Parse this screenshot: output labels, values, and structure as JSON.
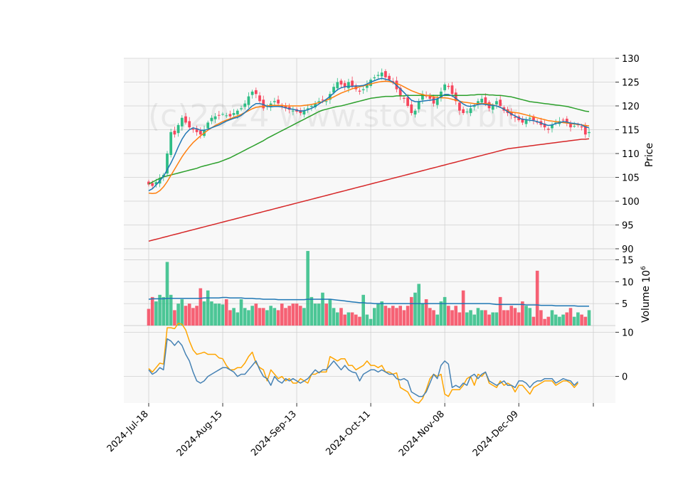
{
  "watermark": "(c)2024 www.stockorbit",
  "chart_data": {
    "type": "candlestick",
    "colors": {
      "up": "#2ebd85",
      "down": "#f6465d",
      "ma_fast": "#1f77b4",
      "ma_mid": "#ff7f0e",
      "ma_slow": "#2ca02c",
      "ma_long": "#d62728",
      "vol_ma": "#1f77b4",
      "osc_signal": "#ffa500",
      "osc_line": "#4682b4",
      "grid": "#d0d0d0",
      "panel_bg": "#f8f8f8"
    },
    "x_tick_labels": [
      "2024-Jul-18",
      "2024-Aug-15",
      "2024-Sep-13",
      "2024-Oct-11",
      "2024-Nov-08",
      "2024-Dec-09"
    ],
    "x_tick_index": [
      0,
      20,
      40,
      60,
      80,
      100
    ],
    "price_panel": {
      "ylabel": "Price",
      "ylim": [
        90,
        130
      ],
      "yticks": [
        90,
        95,
        100,
        105,
        110,
        115,
        120,
        125,
        130
      ],
      "close": [
        103.5,
        103.2,
        104.0,
        104.8,
        105.5,
        110.0,
        114.5,
        114.0,
        116.0,
        117.5,
        116.5,
        115.5,
        115.0,
        114.5,
        114.0,
        115.0,
        116.5,
        117.5,
        117.8,
        118.0,
        118.3,
        118.0,
        117.8,
        118.5,
        119.0,
        119.5,
        120.5,
        122.0,
        123.0,
        122.5,
        121.0,
        119.5,
        120.0,
        120.5,
        121.0,
        120.5,
        119.8,
        119.5,
        119.2,
        119.0,
        118.8,
        118.5,
        119.0,
        119.5,
        120.0,
        120.5,
        121.0,
        121.2,
        121.0,
        122.5,
        124.0,
        125.0,
        124.5,
        124.0,
        125.0,
        124.0,
        123.5,
        123.0,
        123.5,
        124.5,
        125.5,
        126.0,
        126.5,
        127.0,
        126.0,
        125.5,
        125.0,
        123.5,
        122.0,
        121.5,
        120.0,
        118.5,
        119.0,
        121.0,
        122.5,
        122.0,
        121.5,
        120.5,
        121.5,
        123.0,
        124.5,
        124.0,
        122.5,
        121.0,
        119.0,
        118.5,
        118.8,
        119.5,
        120.0,
        121.0,
        121.5,
        120.5,
        119.5,
        120.0,
        121.0,
        120.0,
        119.0,
        118.5,
        118.0,
        117.5,
        117.0,
        116.5,
        117.0,
        117.5,
        117.0,
        116.5,
        116.0,
        115.5,
        115.0,
        116.0,
        116.5,
        116.8,
        117.0,
        116.5,
        115.5,
        115.8,
        116.0,
        115.5,
        114.0,
        114.5
      ],
      "ma_fast": [
        102.2,
        102.6,
        103.4,
        104.3,
        105.2,
        106.6,
        108.0,
        109.6,
        111.4,
        113.0,
        114.2,
        115.0,
        115.4,
        115.2,
        114.9,
        114.9,
        115.1,
        115.4,
        115.7,
        116.0,
        116.4,
        116.8,
        117.1,
        117.4,
        117.6,
        118.0,
        118.6,
        119.3,
        120.0,
        120.5,
        120.5,
        120.3,
        119.9,
        119.8,
        119.9,
        119.9,
        119.8,
        119.6,
        119.4,
        119.3,
        119.1,
        118.9,
        119.0,
        119.2,
        119.5,
        119.9,
        120.4,
        120.9,
        121.4,
        122.0,
        122.7,
        123.4,
        123.8,
        124.0,
        124.1,
        124.1,
        124.2,
        124.2,
        124.3,
        124.6,
        125.0,
        125.3,
        125.6,
        125.8,
        125.6,
        125.4,
        125.0,
        124.3,
        123.6,
        122.8,
        122.0,
        121.2,
        120.9,
        120.9,
        121.0,
        121.1,
        121.2,
        121.3,
        121.5,
        121.9,
        122.4,
        122.4,
        122.1,
        121.6,
        121.0,
        120.4,
        120.0,
        119.9,
        120.1,
        120.3,
        120.4,
        120.3,
        120.2,
        120.1,
        120.0,
        119.7,
        119.3,
        118.8,
        118.3,
        117.9,
        117.5,
        117.2,
        117.1,
        117.0,
        116.9,
        116.7,
        116.4,
        116.1,
        115.9,
        116.0,
        116.3,
        116.5,
        116.7,
        116.6,
        116.4,
        116.3,
        116.2,
        116.0,
        115.6,
        115.4
      ],
      "ma_mid": [
        101.7,
        101.6,
        101.7,
        102.2,
        103.0,
        104.1,
        105.4,
        106.7,
        108.0,
        109.3,
        110.4,
        111.4,
        112.3,
        113.0,
        113.7,
        114.3,
        114.9,
        115.4,
        115.9,
        116.3,
        116.7,
        117.0,
        117.3,
        117.6,
        117.9,
        118.2,
        118.6,
        119.0,
        119.4,
        119.7,
        119.8,
        119.9,
        120.0,
        120.1,
        120.1,
        120.1,
        120.1,
        120.0,
        120.0,
        120.0,
        120.0,
        120.0,
        120.1,
        120.2,
        120.3,
        120.5,
        120.7,
        120.9,
        121.2,
        121.5,
        121.9,
        122.3,
        122.7,
        123.0,
        123.3,
        123.6,
        123.8,
        124.0,
        124.2,
        124.4,
        124.6,
        124.8,
        125.0,
        125.1,
        125.2,
        125.1,
        124.9,
        124.7,
        124.4,
        124.0,
        123.6,
        123.2,
        122.9,
        122.6,
        122.4,
        122.2,
        122.1,
        121.9,
        121.8,
        121.7,
        121.7,
        121.6,
        121.4,
        121.2,
        121.0,
        120.8,
        120.7,
        120.6,
        120.5,
        120.5,
        120.5,
        120.5,
        120.4,
        120.2,
        120.0,
        119.7,
        119.3,
        118.9,
        118.7,
        118.6,
        118.5,
        118.3,
        118.1,
        117.9,
        117.7,
        117.5,
        117.3,
        117.1,
        116.9,
        116.8,
        116.7,
        116.6,
        116.5,
        116.4,
        116.3,
        116.2,
        116.1,
        116.0,
        115.9,
        115.8
      ],
      "ma_slow": [
        103.6,
        104.0,
        104.4,
        104.8,
        105.1,
        105.3,
        105.5,
        105.7,
        105.9,
        106.1,
        106.3,
        106.5,
        106.7,
        106.9,
        107.2,
        107.4,
        107.6,
        107.8,
        108.0,
        108.2,
        108.5,
        108.8,
        109.1,
        109.5,
        109.9,
        110.3,
        110.7,
        111.1,
        111.5,
        111.9,
        112.3,
        112.7,
        113.2,
        113.6,
        114.0,
        114.4,
        114.8,
        115.2,
        115.6,
        116.0,
        116.4,
        116.8,
        117.2,
        117.6,
        118.0,
        118.4,
        118.8,
        119.1,
        119.3,
        119.5,
        119.7,
        119.9,
        120.0,
        120.2,
        120.4,
        120.6,
        120.8,
        121.0,
        121.2,
        121.4,
        121.6,
        121.7,
        121.8,
        121.9,
        122.0,
        122.0,
        122.0,
        122.1,
        122.1,
        122.1,
        122.2,
        122.2,
        122.2,
        122.2,
        122.2,
        122.2,
        122.2,
        122.2,
        122.2,
        122.2,
        122.2,
        122.2,
        122.2,
        122.2,
        122.2,
        122.2,
        122.2,
        122.3,
        122.3,
        122.4,
        122.4,
        122.4,
        122.3,
        122.3,
        122.2,
        122.2,
        122.1,
        122.0,
        121.9,
        121.7,
        121.5,
        121.3,
        121.1,
        120.9,
        120.8,
        120.7,
        120.6,
        120.5,
        120.4,
        120.3,
        120.2,
        120.1,
        120.0,
        119.9,
        119.7,
        119.5,
        119.3,
        119.1,
        118.9,
        118.8
      ],
      "ma_long": [
        91.6,
        91.8,
        92.0,
        92.2,
        92.4,
        92.6,
        92.8,
        93.0,
        93.2,
        93.4,
        93.6,
        93.8,
        94.0,
        94.2,
        94.4,
        94.6,
        94.8,
        95.0,
        95.2,
        95.4,
        95.6,
        95.8,
        96.0,
        96.2,
        96.4,
        96.6,
        96.8,
        97.0,
        97.2,
        97.4,
        97.6,
        97.8,
        98.0,
        98.2,
        98.4,
        98.6,
        98.8,
        99.0,
        99.2,
        99.4,
        99.6,
        99.8,
        100.0,
        100.2,
        100.4,
        100.6,
        100.8,
        101.0,
        101.2,
        101.4,
        101.6,
        101.8,
        102.0,
        102.2,
        102.4,
        102.6,
        102.8,
        103.0,
        103.2,
        103.4,
        103.6,
        103.8,
        104.0,
        104.2,
        104.4,
        104.6,
        104.8,
        105.0,
        105.2,
        105.4,
        105.6,
        105.8,
        106.0,
        106.2,
        106.4,
        106.6,
        106.8,
        107.0,
        107.2,
        107.4,
        107.6,
        107.8,
        108.0,
        108.2,
        108.4,
        108.6,
        108.8,
        109.0,
        109.2,
        109.4,
        109.6,
        109.8,
        110.0,
        110.2,
        110.4,
        110.6,
        110.8,
        111.0,
        111.1,
        111.2,
        111.3,
        111.4,
        111.5,
        111.6,
        111.7,
        111.8,
        111.9,
        112.0,
        112.1,
        112.2,
        112.3,
        112.4,
        112.5,
        112.6,
        112.7,
        112.8,
        112.9,
        113.0,
        113.0,
        113.1
      ]
    },
    "volume_panel": {
      "ylabel": "Volume",
      "multiplier_label": "10",
      "multiplier_exp": "6",
      "ylim": [
        0,
        17.5
      ],
      "yticks": [
        5,
        10,
        15
      ],
      "values": [
        3.8,
        6.5,
        5.5,
        7.0,
        6.5,
        14.5,
        7.0,
        3.5,
        5.0,
        6.0,
        4.5,
        5.0,
        4.0,
        4.5,
        8.5,
        5.5,
        8.0,
        5.5,
        5.0,
        5.0,
        4.8,
        6.0,
        3.5,
        4.0,
        3.0,
        6.0,
        4.0,
        3.5,
        4.5,
        5.0,
        4.0,
        4.0,
        3.5,
        4.5,
        4.0,
        3.5,
        5.0,
        4.0,
        4.5,
        5.0,
        5.0,
        4.5,
        4.0,
        17.0,
        6.5,
        5.0,
        5.0,
        7.5,
        5.0,
        6.0,
        4.0,
        3.0,
        4.0,
        2.5,
        3.0,
        3.0,
        2.5,
        2.0,
        7.0,
        2.5,
        1.5,
        4.0,
        5.0,
        5.5,
        4.5,
        4.0,
        4.5,
        4.0,
        4.5,
        3.5,
        4.5,
        6.5,
        7.5,
        9.5,
        5.0,
        6.0,
        4.0,
        3.5,
        2.5,
        5.5,
        6.5,
        4.5,
        3.5,
        4.5,
        3.0,
        8.0,
        3.0,
        3.5,
        2.5,
        4.0,
        3.5,
        3.5,
        2.5,
        3.0,
        3.0,
        6.5,
        3.5,
        3.5,
        4.5,
        4.0,
        3.0,
        5.5,
        4.5,
        4.0,
        2.0,
        12.5,
        3.5,
        1.5,
        2.0,
        3.5,
        2.5,
        2.0,
        2.5,
        3.0,
        4.0,
        2.0,
        3.0,
        2.5,
        2.0,
        3.5,
        2.0
      ],
      "ma": [
        6.0,
        6.1,
        6.1,
        6.1,
        6.1,
        6.2,
        6.2,
        6.2,
        6.2,
        6.2,
        6.2,
        6.2,
        6.2,
        6.2,
        6.2,
        6.3,
        6.3,
        6.3,
        6.3,
        6.3,
        6.4,
        6.4,
        6.3,
        6.3,
        6.3,
        6.3,
        6.2,
        6.2,
        6.2,
        6.1,
        6.1,
        6.0,
        6.0,
        6.0,
        6.0,
        5.9,
        5.9,
        5.9,
        5.9,
        5.9,
        5.9,
        5.9,
        5.9,
        6.0,
        6.0,
        6.0,
        6.0,
        6.0,
        6.0,
        6.0,
        5.9,
        5.8,
        5.7,
        5.6,
        5.5,
        5.4,
        5.3,
        5.2,
        5.2,
        5.1,
        5.1,
        5.0,
        5.0,
        5.0,
        5.0,
        5.0,
        5.0,
        5.0,
        5.0,
        5.0,
        5.0,
        5.0,
        5.0,
        5.0,
        5.0,
        5.0,
        5.0,
        5.0,
        5.0,
        5.0,
        5.0,
        5.0,
        5.0,
        5.0,
        5.0,
        5.0,
        5.0,
        5.0,
        5.0,
        5.0,
        5.0,
        5.0,
        5.0,
        4.9,
        4.8,
        4.8,
        4.8,
        4.8,
        4.8,
        4.8,
        4.8,
        4.8,
        4.7,
        4.7,
        4.7,
        4.7,
        4.6,
        4.6,
        4.6,
        4.6,
        4.5,
        4.5,
        4.5,
        4.5,
        4.5,
        4.5,
        4.4,
        4.4,
        4.4,
        4.4
      ]
    },
    "oscillator_panel": {
      "ylim": [
        -6,
        11.5
      ],
      "yticks": [
        0,
        10
      ],
      "signal": [
        1.8,
        1.0,
        2.0,
        3.0,
        2.8,
        11.0,
        11.0,
        10.8,
        12.0,
        11.8,
        10.5,
        8.0,
        6.0,
        5.0,
        5.2,
        5.5,
        5.0,
        5.0,
        5.0,
        4.2,
        4.0,
        2.5,
        1.5,
        1.5,
        2.0,
        2.0,
        3.0,
        4.5,
        5.5,
        3.0,
        2.0,
        1.5,
        -1.0,
        1.5,
        0.5,
        -0.5,
        0.0,
        -1.0,
        -0.5,
        -1.5,
        -1.5,
        -0.5,
        -1.0,
        -1.5,
        0.5,
        0.5,
        1.0,
        1.0,
        1.0,
        4.5,
        4.0,
        3.5,
        4.0,
        4.0,
        2.5,
        2.5,
        1.5,
        2.0,
        2.5,
        3.5,
        2.5,
        2.5,
        2.0,
        2.5,
        1.0,
        1.0,
        0.5,
        0.8,
        -2.5,
        -3.0,
        -3.5,
        -5.0,
        -5.8,
        -6.0,
        -5.0,
        -3.0,
        -0.5,
        0.5,
        0.0,
        0.5,
        -4.0,
        -4.5,
        -3.0,
        -3.0,
        -3.0,
        -2.0,
        -0.5,
        0.0,
        -2.0,
        0.5,
        0.0,
        1.0,
        -1.5,
        -2.0,
        -2.5,
        -1.0,
        -2.0,
        -1.5,
        -2.0,
        -3.5,
        -2.0,
        -2.0,
        -3.0,
        -4.0,
        -2.5,
        -2.0,
        -1.5,
        -1.0,
        -1.0,
        -1.0,
        -2.0,
        -1.5,
        -1.0,
        -1.0,
        -1.5,
        -2.5,
        -1.5
      ],
      "line": [
        1.5,
        0.5,
        1.0,
        2.0,
        1.5,
        8.5,
        8.0,
        7.0,
        8.0,
        7.0,
        5.0,
        3.5,
        1.0,
        -1.0,
        -1.5,
        -1.0,
        0.0,
        0.5,
        1.0,
        1.5,
        2.0,
        2.0,
        1.5,
        1.0,
        0.0,
        0.5,
        0.5,
        1.5,
        2.5,
        3.5,
        1.5,
        0.0,
        -0.5,
        -2.0,
        0.0,
        -1.0,
        -1.5,
        -0.5,
        -1.0,
        -0.5,
        -1.0,
        -1.5,
        -1.0,
        -0.5,
        0.5,
        1.5,
        0.8,
        1.5,
        1.5,
        2.5,
        3.5,
        2.5,
        1.5,
        2.5,
        1.5,
        1.0,
        0.8,
        -1.0,
        0.5,
        1.0,
        1.5,
        1.5,
        1.0,
        1.5,
        1.0,
        0.5,
        0.5,
        -0.5,
        -0.8,
        -0.5,
        -1.0,
        -3.5,
        -4.0,
        -4.5,
        -4.5,
        -3.5,
        -1.5,
        0.5,
        -0.5,
        2.5,
        3.5,
        2.8,
        -2.5,
        -2.0,
        -2.5,
        -1.5,
        -2.0,
        0.0,
        0.5,
        -0.5,
        0.5,
        1.0,
        -1.0,
        -1.5,
        -2.0,
        -1.5,
        -1.0,
        -2.0,
        -2.0,
        -2.5,
        -1.0,
        -1.0,
        -1.5,
        -2.5,
        -1.5,
        -1.0,
        -1.0,
        -0.5,
        -0.5,
        -0.5,
        -1.5,
        -1.0,
        -0.5,
        -0.8,
        -1.0,
        -2.0,
        -1.2
      ]
    }
  }
}
